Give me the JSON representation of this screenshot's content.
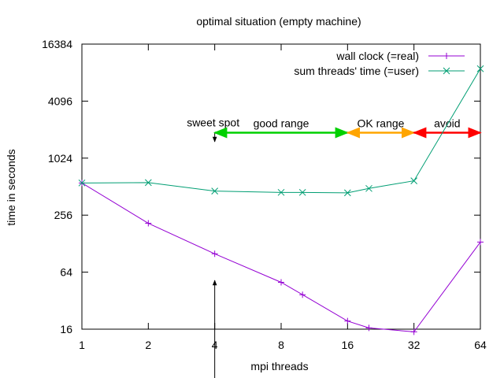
{
  "chart_data": {
    "type": "line",
    "title": "optimal situation (empty machine)",
    "xlabel": "mpi threads",
    "ylabel": "time in seconds",
    "x_scale": "log2",
    "y_scale": "log2",
    "xlim": [
      1,
      64
    ],
    "ylim": [
      16,
      16384
    ],
    "x_ticks": [
      1,
      2,
      4,
      8,
      16,
      32,
      64
    ],
    "x_tick_labels": [
      "1",
      "2",
      "4",
      "8",
      "16",
      "32",
      "64"
    ],
    "y_ticks": [
      16,
      64,
      256,
      1024,
      4096,
      16384
    ],
    "y_tick_labels": [
      "16",
      "64",
      "256",
      "1024",
      "4096",
      "16384"
    ],
    "grid": false,
    "legend_position": "top-right",
    "series": [
      {
        "name": "wall clock (=real)",
        "color": "#9400d3",
        "marker": "plus",
        "x": [
          1,
          2,
          4,
          8,
          10,
          16,
          20,
          32,
          64
        ],
        "y": [
          560,
          210,
          100,
          50,
          37,
          19.5,
          16.5,
          15,
          133
        ]
      },
      {
        "name": "sum threads' time (=user)",
        "color": "#009e73",
        "marker": "cross",
        "x": [
          1,
          2,
          4,
          8,
          10,
          16,
          20,
          32,
          64
        ],
        "y": [
          560,
          565,
          460,
          445,
          445,
          440,
          490,
          590,
          9000
        ]
      }
    ],
    "annotations": [
      {
        "text": "sweet spot",
        "x": 4,
        "y": 2400,
        "color": "#000000"
      },
      {
        "text": "good range",
        "x_from": 4,
        "x_to": 16,
        "y": 1900,
        "color": "#00d000"
      },
      {
        "text": "OK range",
        "x_from": 16,
        "x_to": 32,
        "y": 1900,
        "color": "#ffa500"
      },
      {
        "text": "avoid",
        "x_from": 32,
        "x_to": 64,
        "y": 1900,
        "color": "#ff0000"
      }
    ]
  }
}
